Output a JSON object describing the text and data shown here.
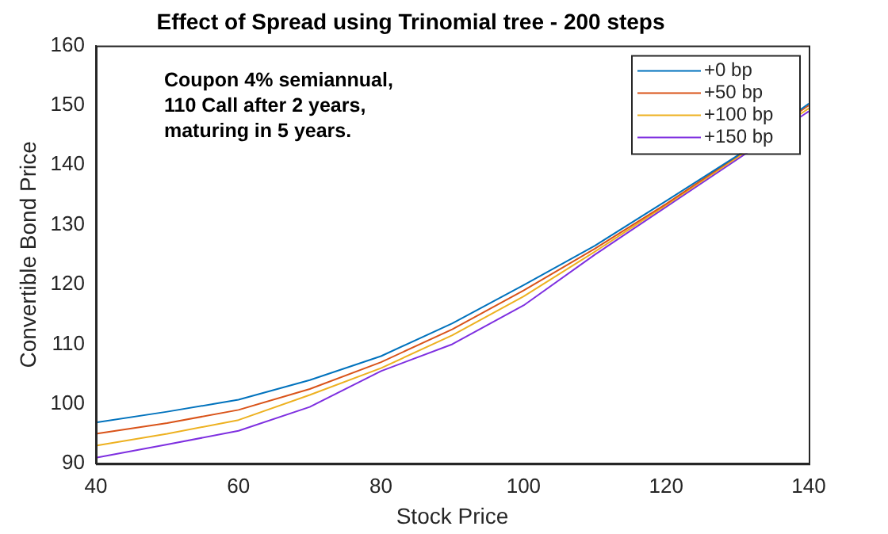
{
  "chart_data": {
    "type": "line",
    "title": "Effect of Spread using Trinomial tree - 200 steps",
    "xlabel": "Stock Price",
    "ylabel": "Convertible Bond Price",
    "annotations": [
      "Coupon 4% semiannual,\n110 Call after 2 years,\nmaturing in 5 years."
    ],
    "x": [
      40,
      50,
      60,
      70,
      80,
      90,
      100,
      110,
      120,
      130,
      140
    ],
    "series": [
      {
        "name": "+0 bp",
        "color": "#0072bd",
        "values": [
          96.9,
          98.7,
          100.7,
          104,
          108,
          113.5,
          119.9,
          126.5,
          134,
          141.6,
          150.3
        ]
      },
      {
        "name": "+50 bp",
        "color": "#d95319",
        "values": [
          95,
          96.8,
          99,
          102.5,
          107,
          112.5,
          119,
          126,
          133.5,
          141.5,
          150
        ]
      },
      {
        "name": "+100 bp",
        "color": "#edb120",
        "values": [
          93,
          95,
          97.3,
          101.5,
          106,
          111.5,
          118,
          125.5,
          133.3,
          141.3,
          149.5
        ]
      },
      {
        "name": "+150 bp",
        "color": "#7e2fe0",
        "values": [
          91,
          93.2,
          95.5,
          99.5,
          105.5,
          110,
          116.5,
          125,
          133,
          141,
          149
        ]
      }
    ],
    "xlim": [
      40,
      140
    ],
    "xticks": [
      40,
      60,
      80,
      100,
      120,
      140
    ],
    "ylim": [
      90,
      160
    ],
    "yticks": [
      90,
      100,
      110,
      120,
      130,
      140,
      150,
      160
    ],
    "grid": false,
    "legend": "top right",
    "marker": "none",
    "line_style": "solid"
  }
}
